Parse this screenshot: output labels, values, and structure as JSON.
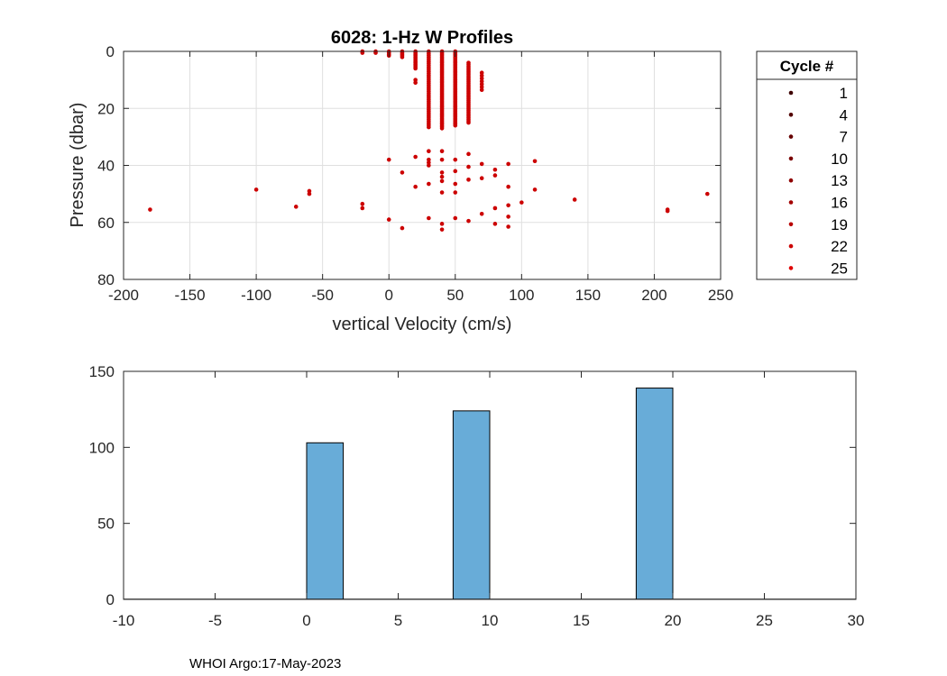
{
  "footer": "WHOI Argo:17-May-2023",
  "chart_data": [
    {
      "type": "scatter",
      "title": "6028: 1-Hz W Profiles",
      "xlabel": "vertical Velocity (cm/s)",
      "ylabel": "Pressure (dbar)",
      "xlim": [
        -200,
        250
      ],
      "ylim": [
        0,
        80
      ],
      "y_reversed": true,
      "grid": true,
      "xticks": [
        -200,
        -150,
        -100,
        -50,
        0,
        50,
        100,
        150,
        200,
        250
      ],
      "yticks": [
        0,
        20,
        40,
        60,
        80
      ],
      "color": "#cc0000",
      "legend": {
        "title": "Cycle #",
        "placement": "outside-right",
        "entries": [
          "1",
          "4",
          "7",
          "10",
          "13",
          "16",
          "19",
          "22",
          "25"
        ],
        "colors": [
          "#3d0000",
          "#520000",
          "#660000",
          "#7a0000",
          "#8f0000",
          "#a30000",
          "#b80000",
          "#cc0000",
          "#e00000"
        ]
      },
      "column_series": [
        {
          "x": -20,
          "y_from": 0,
          "y_to": 0.5,
          "step": 0.5
        },
        {
          "x": -10,
          "y_from": 0,
          "y_to": 0.5,
          "step": 0.5
        },
        {
          "x": 0,
          "y_from": 0,
          "y_to": 1.5,
          "step": 0.5
        },
        {
          "x": 10,
          "y_from": 0,
          "y_to": 2,
          "step": 0.5
        },
        {
          "x": 20,
          "y_from": 0,
          "y_to": 6,
          "step": 0.5
        },
        {
          "x": 30,
          "y_from": 0,
          "y_to": 27,
          "step": 0.7
        },
        {
          "x": 40,
          "y_from": 0,
          "y_to": 27,
          "step": 0.5
        },
        {
          "x": 50,
          "y_from": 0,
          "y_to": 26,
          "step": 0.5
        },
        {
          "x": 60,
          "y_from": 4,
          "y_to": 25,
          "step": 0.6
        },
        {
          "x": 70,
          "y_from": 7.5,
          "y_to": 14,
          "step": 1.0
        }
      ],
      "points": [
        {
          "x": -180,
          "y": 55.5
        },
        {
          "x": -100,
          "y": 48.5
        },
        {
          "x": -70,
          "y": 54.5
        },
        {
          "x": -60,
          "y": 49
        },
        {
          "x": -60,
          "y": 50
        },
        {
          "x": -20,
          "y": 53.5
        },
        {
          "x": -20,
          "y": 55
        },
        {
          "x": 0,
          "y": 38
        },
        {
          "x": 0,
          "y": 59
        },
        {
          "x": 10,
          "y": 42.5
        },
        {
          "x": 10,
          "y": 62
        },
        {
          "x": 20,
          "y": 37
        },
        {
          "x": 20,
          "y": 47.5
        },
        {
          "x": 20,
          "y": 10
        },
        {
          "x": 20,
          "y": 11
        },
        {
          "x": 30,
          "y": 35
        },
        {
          "x": 30,
          "y": 38
        },
        {
          "x": 30,
          "y": 39
        },
        {
          "x": 30,
          "y": 40
        },
        {
          "x": 30,
          "y": 46.5
        },
        {
          "x": 30,
          "y": 58.5
        },
        {
          "x": 40,
          "y": 35
        },
        {
          "x": 40,
          "y": 38
        },
        {
          "x": 40,
          "y": 42.5
        },
        {
          "x": 40,
          "y": 44
        },
        {
          "x": 40,
          "y": 45.5
        },
        {
          "x": 40,
          "y": 49.5
        },
        {
          "x": 40,
          "y": 60.5
        },
        {
          "x": 40,
          "y": 62.5
        },
        {
          "x": 50,
          "y": 38
        },
        {
          "x": 50,
          "y": 42
        },
        {
          "x": 50,
          "y": 46.5
        },
        {
          "x": 50,
          "y": 49.5
        },
        {
          "x": 50,
          "y": 58.5
        },
        {
          "x": 60,
          "y": 36
        },
        {
          "x": 60,
          "y": 40.5
        },
        {
          "x": 60,
          "y": 45
        },
        {
          "x": 60,
          "y": 59.5
        },
        {
          "x": 70,
          "y": 39.5
        },
        {
          "x": 70,
          "y": 44.5
        },
        {
          "x": 70,
          "y": 57
        },
        {
          "x": 80,
          "y": 41.5
        },
        {
          "x": 80,
          "y": 43.5
        },
        {
          "x": 80,
          "y": 55
        },
        {
          "x": 80,
          "y": 60.5
        },
        {
          "x": 90,
          "y": 39.5
        },
        {
          "x": 90,
          "y": 47.5
        },
        {
          "x": 90,
          "y": 54
        },
        {
          "x": 90,
          "y": 58
        },
        {
          "x": 90,
          "y": 61.5
        },
        {
          "x": 100,
          "y": 53
        },
        {
          "x": 110,
          "y": 38.5
        },
        {
          "x": 110,
          "y": 48.5
        },
        {
          "x": 140,
          "y": 52
        },
        {
          "x": 210,
          "y": 55.5
        },
        {
          "x": 210,
          "y": 56
        },
        {
          "x": 240,
          "y": 50
        }
      ]
    },
    {
      "type": "bar",
      "title": "",
      "xlabel": "",
      "ylabel": "",
      "xlim": [
        -10,
        30
      ],
      "ylim": [
        0,
        150
      ],
      "grid": false,
      "xticks": [
        -10,
        -5,
        0,
        5,
        10,
        15,
        20,
        25,
        30
      ],
      "yticks": [
        0,
        50,
        100,
        150
      ],
      "bar_color": "#68acd8",
      "bins": [
        {
          "left": 0,
          "right": 2,
          "value": 103
        },
        {
          "left": 8,
          "right": 10,
          "value": 124
        },
        {
          "left": 18,
          "right": 20,
          "value": 139
        }
      ]
    }
  ]
}
